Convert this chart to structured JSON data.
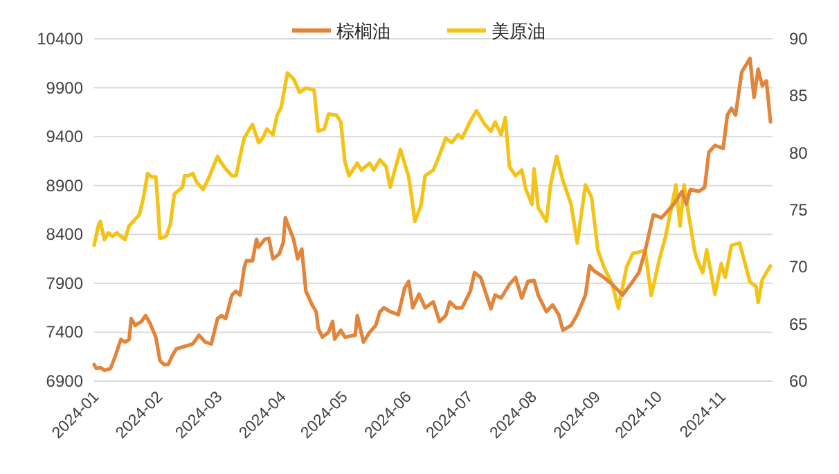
{
  "chart_data": {
    "type": "line",
    "xlim": [
      "2024-01-01",
      "2024-11-26"
    ],
    "xticks": [
      {
        "value": "2024-01-01",
        "label": "2024-01"
      },
      {
        "value": "2024-02-01",
        "label": "2024-02"
      },
      {
        "value": "2024-03-01",
        "label": "2024-03"
      },
      {
        "value": "2024-04-01",
        "label": "2024-04"
      },
      {
        "value": "2024-05-01",
        "label": "2024-05"
      },
      {
        "value": "2024-06-01",
        "label": "2024-06"
      },
      {
        "value": "2024-07-01",
        "label": "2024-07"
      },
      {
        "value": "2024-08-01",
        "label": "2024-08"
      },
      {
        "value": "2024-09-01",
        "label": "2024-09"
      },
      {
        "value": "2024-10-01",
        "label": "2024-10"
      },
      {
        "value": "2024-11-01",
        "label": "2024-11"
      }
    ],
    "ylim": [
      6900,
      10400
    ],
    "yticks": [
      6900,
      7400,
      7900,
      8400,
      8900,
      9400,
      9900,
      10400
    ],
    "y2lim": [
      60,
      90
    ],
    "y2ticks": [
      60,
      65,
      70,
      75,
      80,
      85,
      90
    ],
    "grid": "y",
    "legend": "top",
    "series": [
      {
        "name": "棕榈油",
        "color": "#e2843a",
        "x": [
          "2024-01-01",
          "2024-01-02",
          "2024-01-04",
          "2024-01-06",
          "2024-01-09",
          "2024-01-11",
          "2024-01-14",
          "2024-01-16",
          "2024-01-18",
          "2024-01-19",
          "2024-01-21",
          "2024-01-24",
          "2024-01-26",
          "2024-01-28",
          "2024-01-31",
          "2024-02-02",
          "2024-02-04",
          "2024-02-06",
          "2024-02-08",
          "2024-02-10",
          "2024-02-18",
          "2024-02-21",
          "2024-02-24",
          "2024-02-27",
          "2024-03-01",
          "2024-03-03",
          "2024-03-05",
          "2024-03-08",
          "2024-03-10",
          "2024-03-12",
          "2024-03-14",
          "2024-03-15",
          "2024-03-18",
          "2024-03-20",
          "2024-03-21",
          "2024-03-24",
          "2024-03-26",
          "2024-03-28",
          "2024-03-31",
          "2024-04-02",
          "2024-04-03",
          "2024-04-07",
          "2024-04-09",
          "2024-04-11",
          "2024-04-13",
          "2024-04-16",
          "2024-04-18",
          "2024-04-19",
          "2024-04-21",
          "2024-04-24",
          "2024-04-26",
          "2024-04-27",
          "2024-04-30",
          "2024-05-02",
          "2024-05-07",
          "2024-05-08",
          "2024-05-11",
          "2024-05-14",
          "2024-05-17",
          "2024-05-19",
          "2024-05-21",
          "2024-05-24",
          "2024-05-28",
          "2024-05-31",
          "2024-06-02",
          "2024-06-04",
          "2024-06-07",
          "2024-06-10",
          "2024-06-14",
          "2024-06-17",
          "2024-06-20",
          "2024-06-22",
          "2024-06-25",
          "2024-06-28",
          "2024-07-02",
          "2024-07-04",
          "2024-07-07",
          "2024-07-12",
          "2024-07-14",
          "2024-07-17",
          "2024-07-21",
          "2024-07-24",
          "2024-07-27",
          "2024-07-30",
          "2024-08-02",
          "2024-08-04",
          "2024-08-08",
          "2024-08-11",
          "2024-08-14",
          "2024-08-16",
          "2024-08-20",
          "2024-08-23",
          "2024-08-27",
          "2024-08-29",
          "2024-08-31",
          "2024-09-05",
          "2024-09-09",
          "2024-09-14",
          "2024-09-18",
          "2024-09-22",
          "2024-09-25",
          "2024-09-29",
          "2024-10-03",
          "2024-10-06",
          "2024-10-09",
          "2024-10-13",
          "2024-10-15",
          "2024-10-17",
          "2024-10-21",
          "2024-10-24",
          "2024-10-26",
          "2024-10-29",
          "2024-11-02",
          "2024-11-04",
          "2024-11-06",
          "2024-11-08",
          "2024-11-11",
          "2024-11-15",
          "2024-11-17",
          "2024-11-19",
          "2024-11-21",
          "2024-11-23",
          "2024-11-25"
        ],
        "values": [
          7070,
          7030,
          7040,
          7010,
          7030,
          7140,
          7325,
          7300,
          7325,
          7540,
          7470,
          7510,
          7570,
          7500,
          7350,
          7110,
          7070,
          7070,
          7160,
          7230,
          7280,
          7370,
          7300,
          7280,
          7540,
          7570,
          7540,
          7780,
          7820,
          7780,
          8060,
          8130,
          8130,
          8350,
          8270,
          8350,
          8360,
          8150,
          8200,
          8320,
          8570,
          8350,
          8150,
          8250,
          7820,
          7680,
          7610,
          7440,
          7350,
          7400,
          7510,
          7330,
          7420,
          7350,
          7370,
          7570,
          7300,
          7400,
          7470,
          7610,
          7650,
          7610,
          7580,
          7850,
          7920,
          7650,
          7790,
          7650,
          7710,
          7510,
          7570,
          7710,
          7650,
          7650,
          7820,
          8010,
          7960,
          7640,
          7780,
          7750,
          7890,
          7960,
          7750,
          7920,
          7930,
          7780,
          7610,
          7680,
          7580,
          7420,
          7470,
          7580,
          7780,
          8080,
          8030,
          7960,
          7890,
          7780,
          7890,
          8010,
          8230,
          8600,
          8570,
          8640,
          8710,
          8840,
          8710,
          8860,
          8840,
          8880,
          9240,
          9310,
          9280,
          9620,
          9690,
          9620,
          10060,
          10200,
          9800,
          10090,
          9920,
          9970,
          9550
        ]
      },
      {
        "name": "美原油",
        "color": "#f3c317",
        "axis": "y2",
        "x": [
          "2024-01-01",
          "2024-01-03",
          "2024-01-04",
          "2024-01-06",
          "2024-01-08",
          "2024-01-10",
          "2024-01-12",
          "2024-01-16",
          "2024-01-18",
          "2024-01-20",
          "2024-01-23",
          "2024-01-25",
          "2024-01-27",
          "2024-01-29",
          "2024-01-31",
          "2024-02-01",
          "2024-02-02",
          "2024-02-05",
          "2024-02-07",
          "2024-02-09",
          "2024-02-13",
          "2024-02-14",
          "2024-02-16",
          "2024-02-18",
          "2024-02-20",
          "2024-02-23",
          "2024-02-26",
          "2024-03-01",
          "2024-03-03",
          "2024-03-05",
          "2024-03-08",
          "2024-03-10",
          "2024-03-12",
          "2024-03-14",
          "2024-03-18",
          "2024-03-21",
          "2024-03-23",
          "2024-03-25",
          "2024-03-28",
          "2024-03-30",
          "2024-04-01",
          "2024-04-04",
          "2024-04-07",
          "2024-04-10",
          "2024-04-13",
          "2024-04-17",
          "2024-04-19",
          "2024-04-22",
          "2024-04-24",
          "2024-04-28",
          "2024-04-30",
          "2024-05-02",
          "2024-05-04",
          "2024-05-08",
          "2024-05-10",
          "2024-05-14",
          "2024-05-16",
          "2024-05-19",
          "2024-05-22",
          "2024-05-24",
          "2024-05-29",
          "2024-06-02",
          "2024-06-04",
          "2024-06-05",
          "2024-06-08",
          "2024-06-10",
          "2024-06-14",
          "2024-06-17",
          "2024-06-20",
          "2024-06-23",
          "2024-06-26",
          "2024-06-28",
          "2024-07-02",
          "2024-07-05",
          "2024-07-09",
          "2024-07-12",
          "2024-07-14",
          "2024-07-17",
          "2024-07-19",
          "2024-07-21",
          "2024-07-24",
          "2024-07-27",
          "2024-07-29",
          "2024-08-01",
          "2024-08-02",
          "2024-08-04",
          "2024-08-08",
          "2024-08-10",
          "2024-08-13",
          "2024-08-16",
          "2024-08-20",
          "2024-08-23",
          "2024-08-27",
          "2024-08-30",
          "2024-09-02",
          "2024-09-05",
          "2024-09-09",
          "2024-09-12",
          "2024-09-16",
          "2024-09-19",
          "2024-09-22",
          "2024-09-25",
          "2024-09-28",
          "2024-10-02",
          "2024-10-05",
          "2024-10-10",
          "2024-10-12",
          "2024-10-14",
          "2024-10-16",
          "2024-10-19",
          "2024-10-20",
          "2024-10-23",
          "2024-10-25",
          "2024-10-29",
          "2024-11-01",
          "2024-11-03",
          "2024-11-06",
          "2024-11-10",
          "2024-11-15",
          "2024-11-18",
          "2024-11-19",
          "2024-11-21",
          "2024-11-25"
        ],
        "values": [
          71.9,
          73.6,
          74.0,
          72.4,
          73.0,
          72.7,
          73.0,
          72.4,
          73.6,
          74.0,
          74.6,
          76.1,
          78.2,
          77.9,
          77.9,
          75.5,
          72.5,
          72.7,
          73.7,
          76.4,
          77.0,
          78.0,
          78.0,
          78.2,
          77.4,
          76.8,
          77.9,
          79.7,
          79.1,
          78.6,
          78.0,
          78.0,
          79.7,
          81.3,
          82.5,
          80.9,
          81.3,
          82.1,
          81.6,
          83.3,
          84.0,
          87.0,
          86.5,
          85.3,
          85.7,
          85.5,
          81.9,
          82.1,
          83.4,
          83.3,
          82.7,
          79.2,
          78.0,
          79.1,
          78.5,
          79.1,
          78.5,
          79.4,
          78.8,
          77.0,
          80.3,
          77.9,
          75.4,
          74.0,
          75.4,
          78.0,
          78.5,
          79.8,
          81.3,
          80.9,
          81.6,
          81.3,
          82.8,
          83.7,
          82.5,
          81.9,
          82.7,
          81.6,
          83.1,
          78.8,
          78.0,
          78.5,
          76.8,
          75.5,
          78.6,
          75.2,
          74.0,
          77.2,
          79.7,
          77.6,
          75.5,
          72.1,
          77.2,
          76.1,
          71.5,
          70.0,
          68.5,
          66.4,
          70.0,
          71.2,
          71.3,
          71.5,
          67.5,
          70.7,
          72.7,
          77.2,
          73.6,
          77.2,
          74.8,
          71.5,
          70.8,
          69.5,
          71.5,
          67.6,
          70.3,
          69.1,
          71.9,
          72.1,
          68.7,
          68.3,
          66.9,
          68.9,
          70.1
        ]
      }
    ]
  }
}
